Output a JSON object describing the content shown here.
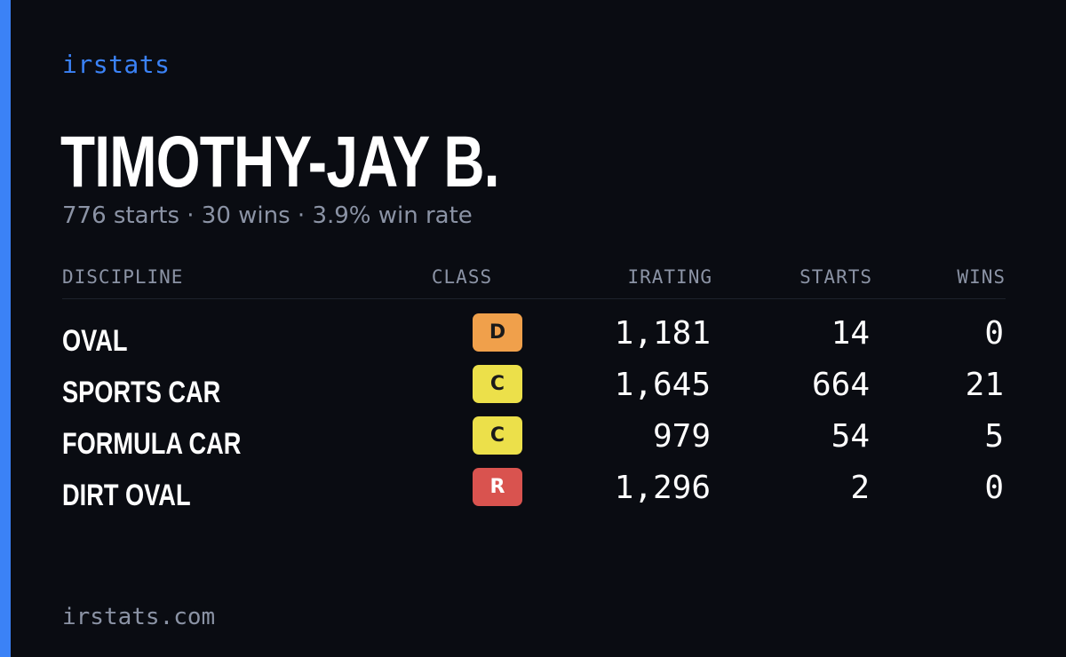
{
  "brand": "irstats",
  "player": {
    "name": "TIMOTHY-JAY B.",
    "summary": "776 starts · 30 wins · 3.9% win rate"
  },
  "table": {
    "headers": {
      "discipline": "DISCIPLINE",
      "class": "CLASS",
      "irating": "IRATING",
      "starts": "STARTS",
      "wins": "WINS"
    },
    "rows": [
      {
        "discipline": "OVAL",
        "class": "D",
        "class_color": "#f0a04b",
        "irating": "1,181",
        "starts": "14",
        "wins": "0"
      },
      {
        "discipline": "SPORTS CAR",
        "class": "C",
        "class_color": "#ece04a",
        "irating": "1,645",
        "starts": "664",
        "wins": "21"
      },
      {
        "discipline": "FORMULA CAR",
        "class": "C",
        "class_color": "#ece04a",
        "irating": "979",
        "starts": "54",
        "wins": "5"
      },
      {
        "discipline": "DIRT OVAL",
        "class": "R",
        "class_color": "#d9534f",
        "irating": "1,296",
        "starts": "2",
        "wins": "0"
      }
    ]
  },
  "footer": "irstats.com",
  "colors": {
    "background": "#0a0c12",
    "accent": "#3b82f6",
    "muted_text": "#8b93a5",
    "primary_text": "#ffffff"
  }
}
